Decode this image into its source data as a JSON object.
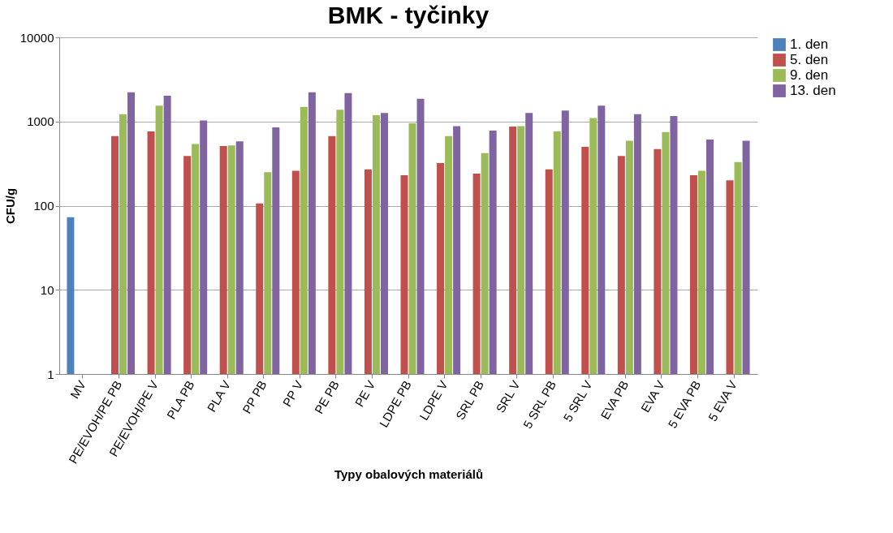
{
  "chart_data": {
    "type": "bar",
    "title": "BMK  - tyčinky",
    "xlabel": "Typy obalových materiálů",
    "ylabel": "CFU/g",
    "categories": [
      "MV",
      "PE/EVOH/PE PB",
      "PE/EVOH/PE V",
      "PLA PB",
      "PLA V",
      "PP PB",
      "PP V",
      "PE PB",
      "PE V",
      "LDPE PB",
      "LDPE V",
      "SRL PB",
      "SRL V",
      "5 SRL PB",
      "5 SRL V",
      "EVA PB",
      "EVA V",
      "5 EVA PB",
      "5 EVA V"
    ],
    "series": [
      {
        "name": "1. den",
        "color": "#4f81bd",
        "values": [
          73,
          null,
          null,
          null,
          null,
          null,
          null,
          null,
          null,
          null,
          null,
          null,
          null,
          null,
          null,
          null,
          null,
          null,
          null
        ]
      },
      {
        "name": "5. den",
        "color": "#c0504d",
        "values": [
          null,
          670,
          760,
          390,
          510,
          106,
          260,
          670,
          270,
          230,
          320,
          240,
          870,
          270,
          500,
          390,
          470,
          230,
          200
        ]
      },
      {
        "name": "9. den",
        "color": "#9bbb59",
        "values": [
          null,
          1220,
          1540,
          540,
          520,
          250,
          1490,
          1380,
          1190,
          950,
          670,
          420,
          880,
          760,
          1100,
          590,
          750,
          260,
          330
        ]
      },
      {
        "name": "13. den",
        "color": "#8064a2",
        "values": [
          null,
          2220,
          2020,
          1030,
          580,
          850,
          2220,
          2170,
          1260,
          1860,
          880,
          780,
          1260,
          1350,
          1540,
          1220,
          1160,
          610,
          590
        ]
      }
    ],
    "log": true,
    "ylim": [
      1,
      10000
    ],
    "yticks": [
      1,
      10,
      100,
      1000,
      10000
    ],
    "grid": "y",
    "legend": "right"
  }
}
